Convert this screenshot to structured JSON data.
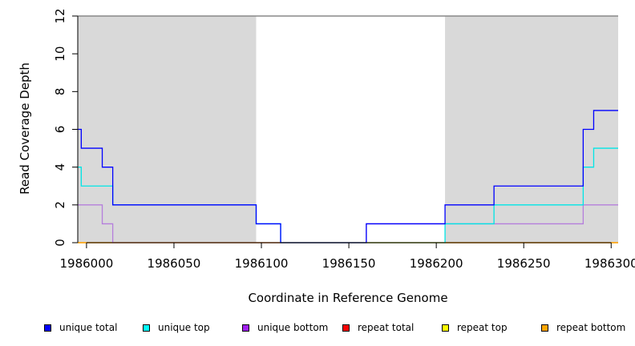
{
  "chart_data": {
    "type": "line",
    "xlabel": "Coordinate in Reference Genome",
    "ylabel": "Read Coverage Depth",
    "xlim": [
      1985995,
      1986304
    ],
    "ylim": [
      0,
      12
    ],
    "x_ticks": [
      1986000,
      1986050,
      1986100,
      1986150,
      1986200,
      1986250,
      1986300
    ],
    "y_ticks": [
      0,
      2,
      4,
      6,
      8,
      10,
      12
    ],
    "shaded_regions": [
      [
        1985995,
        1986097
      ],
      [
        1986205,
        1986304
      ]
    ],
    "series": [
      {
        "name": "repeat total",
        "color": "#ff0000",
        "steps": [
          [
            1985995,
            0
          ],
          [
            1986304,
            0
          ]
        ]
      },
      {
        "name": "repeat top",
        "color": "#ffff00",
        "steps": [
          [
            1985995,
            0
          ],
          [
            1986304,
            0
          ]
        ]
      },
      {
        "name": "repeat bottom",
        "color": "#ffa500",
        "steps": [
          [
            1985995,
            0
          ],
          [
            1986304,
            0
          ]
        ]
      },
      {
        "name": "unique bottom",
        "color": "#b57edc",
        "steps": [
          [
            1985995,
            2
          ],
          [
            1986009,
            1
          ],
          [
            1986015,
            0
          ],
          [
            1986160,
            1
          ],
          [
            1986284,
            2
          ],
          [
            1986304,
            2
          ]
        ]
      },
      {
        "name": "unique top",
        "color": "#00e5e5",
        "steps": [
          [
            1985995,
            4
          ],
          [
            1985997,
            3
          ],
          [
            1986015,
            2
          ],
          [
            1986097,
            1
          ],
          [
            1986111,
            0
          ],
          [
            1986205,
            1
          ],
          [
            1986233,
            2
          ],
          [
            1986284,
            4
          ],
          [
            1986290,
            5
          ],
          [
            1986304,
            5
          ]
        ]
      },
      {
        "name": "unique total",
        "color": "#0000ff",
        "steps": [
          [
            1985995,
            6
          ],
          [
            1985997,
            5
          ],
          [
            1986009,
            4
          ],
          [
            1986015,
            2
          ],
          [
            1986097,
            1
          ],
          [
            1986111,
            0
          ],
          [
            1986160,
            1
          ],
          [
            1986205,
            2
          ],
          [
            1986233,
            3
          ],
          [
            1986284,
            6
          ],
          [
            1986290,
            7
          ],
          [
            1986304,
            7
          ]
        ]
      }
    ],
    "legend": [
      "unique total",
      "unique top",
      "unique bottom",
      "repeat total",
      "repeat top",
      "repeat bottom"
    ],
    "legend_colors": [
      "#0000ff",
      "#00ffff",
      "#a020f0",
      "#ff0000",
      "#ffff00",
      "#ffa500"
    ],
    "legend_placement": "bottom"
  }
}
